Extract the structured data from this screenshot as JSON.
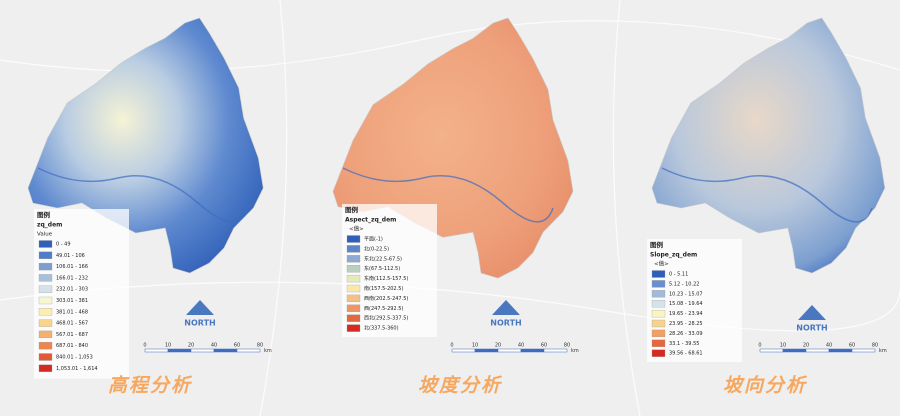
{
  "panels": [
    {
      "title": "高程分析",
      "legend": {
        "heading": "图例",
        "field": "zq_dem",
        "subheading": "Value",
        "items": [
          {
            "label": "0 - 49",
            "color": "#2f5fb8"
          },
          {
            "label": "49.01 - 106",
            "color": "#4f7dc6"
          },
          {
            "label": "106.01 - 166",
            "color": "#7c9fd0"
          },
          {
            "label": "166.01 - 232",
            "color": "#a9c0dc"
          },
          {
            "label": "232.01 - 303",
            "color": "#d6e2e9"
          },
          {
            "label": "303.01 - 381",
            "color": "#f6f7d0"
          },
          {
            "label": "381.01 - 468",
            "color": "#fbeeb0"
          },
          {
            "label": "468.01 - 567",
            "color": "#f9d58c"
          },
          {
            "label": "567.01 - 687",
            "color": "#f4b06c"
          },
          {
            "label": "687.01 - 840",
            "color": "#ec8550"
          },
          {
            "label": "840.01 - 1,053",
            "color": "#e25937"
          },
          {
            "label": "1,053.01 - 1,614",
            "color": "#d42a22"
          }
        ]
      },
      "north": "NORTH",
      "scale": [
        "0",
        "10",
        "20",
        "40",
        "60",
        "80"
      ],
      "unit": "km"
    },
    {
      "title": "坡度分析",
      "legend": {
        "heading": "图例",
        "field": "Aspect_zq_dem",
        "subheading": "<值>",
        "items": [
          {
            "label": "平面(-1)",
            "color": "#2f5fb8"
          },
          {
            "label": "北(0-22.5)",
            "color": "#5d86c8"
          },
          {
            "label": "东北(22.5-67.5)",
            "color": "#8da9d4"
          },
          {
            "label": "东(67.5-112.5)",
            "color": "#b9cfc0"
          },
          {
            "label": "东南(112.5-157.5)",
            "color": "#e6eab6"
          },
          {
            "label": "南(157.5-202.5)",
            "color": "#fbe7a8"
          },
          {
            "label": "西南(202.5-247.5)",
            "color": "#f6c084"
          },
          {
            "label": "西(247.5-292.5)",
            "color": "#ef9664"
          },
          {
            "label": "西北(292.5-337.5)",
            "color": "#e4673f"
          },
          {
            "label": "北(337.5-360)",
            "color": "#d42a22"
          }
        ]
      },
      "north": "NORTH",
      "scale": [
        "0",
        "10",
        "20",
        "40",
        "60",
        "80"
      ],
      "unit": "km"
    },
    {
      "title": "坡向分析",
      "legend": {
        "heading": "图例",
        "field": "Slope_zq_dem",
        "subheading": "<值>",
        "items": [
          {
            "label": "0 - 5.11",
            "color": "#2f5fb8"
          },
          {
            "label": "5.12 - 10.22",
            "color": "#6a8fcc"
          },
          {
            "label": "10.23 - 15.07",
            "color": "#a2b9d8"
          },
          {
            "label": "15.08 - 19.64",
            "color": "#d6e2e9"
          },
          {
            "label": "19.65 - 23.94",
            "color": "#f8f4c4"
          },
          {
            "label": "23.95 - 28.25",
            "color": "#f8d292"
          },
          {
            "label": "28.26 - 33.09",
            "color": "#f0a063"
          },
          {
            "label": "33.1 - 39.55",
            "color": "#e4673f"
          },
          {
            "label": "39.56 - 68.61",
            "color": "#d42a22"
          }
        ]
      },
      "north": "NORTH",
      "scale": [
        "0",
        "10",
        "20",
        "40",
        "60",
        "80"
      ],
      "unit": "km"
    }
  ]
}
